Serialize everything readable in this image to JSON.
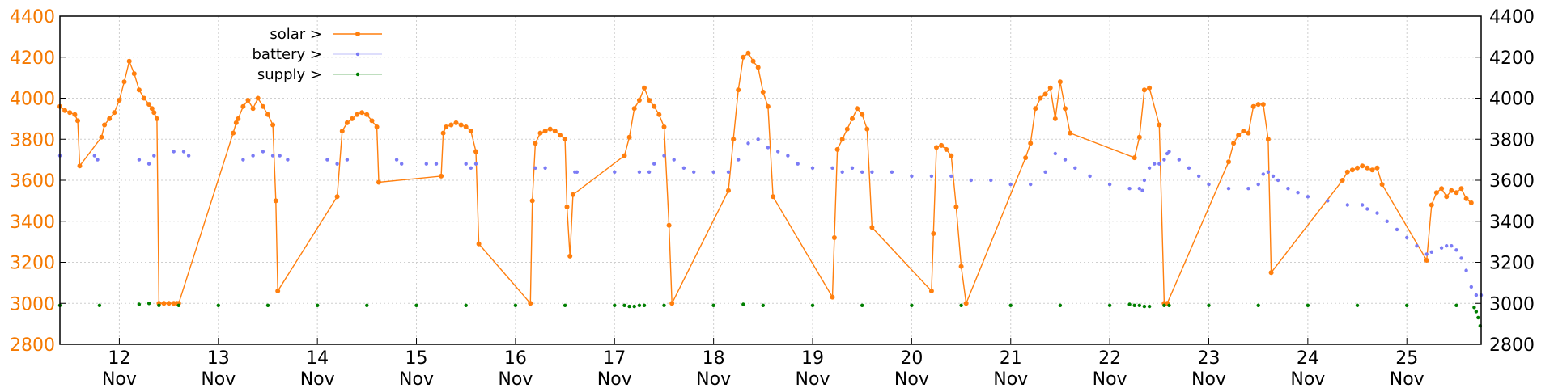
{
  "chart_data": {
    "type": "line",
    "title": "",
    "xlabel": "",
    "ylabel": "",
    "x_unit": "day (Nov)",
    "xlim": [
      11.4,
      25.75
    ],
    "ylim": [
      2800,
      4400
    ],
    "y_ticks": [
      "2800",
      "3000",
      "3200",
      "3400",
      "3600",
      "3800",
      "4000",
      "4200",
      "4400"
    ],
    "x_ticks": [
      {
        "day": 12,
        "label": "12",
        "month": "Nov"
      },
      {
        "day": 13,
        "label": "13",
        "month": "Nov"
      },
      {
        "day": 14,
        "label": "14",
        "month": "Nov"
      },
      {
        "day": 15,
        "label": "15",
        "month": "Nov"
      },
      {
        "day": 16,
        "label": "16",
        "month": "Nov"
      },
      {
        "day": 17,
        "label": "17",
        "month": "Nov"
      },
      {
        "day": 18,
        "label": "18",
        "month": "Nov"
      },
      {
        "day": 19,
        "label": "19",
        "month": "Nov"
      },
      {
        "day": 20,
        "label": "20",
        "month": "Nov"
      },
      {
        "day": 21,
        "label": "21",
        "month": "Nov"
      },
      {
        "day": 22,
        "label": "22",
        "month": "Nov"
      },
      {
        "day": 23,
        "label": "23",
        "month": "Nov"
      },
      {
        "day": 24,
        "label": "24",
        "month": "Nov"
      },
      {
        "day": 25,
        "label": "25",
        "month": "Nov"
      }
    ],
    "grid": true,
    "legend_position": "top-left",
    "series": [
      {
        "name": "solar >",
        "color": "#ff7f0e",
        "style": "line+points",
        "x": [
          11.4,
          11.45,
          11.5,
          11.55,
          11.58,
          11.6,
          11.82,
          11.85,
          11.9,
          11.95,
          12.0,
          12.05,
          12.1,
          12.15,
          12.2,
          12.25,
          12.3,
          12.33,
          12.35,
          12.38,
          12.4,
          12.45,
          12.5,
          12.55,
          12.58,
          12.6,
          13.15,
          13.18,
          13.2,
          13.25,
          13.3,
          13.35,
          13.4,
          13.45,
          13.5,
          13.55,
          13.58,
          13.6,
          14.2,
          14.25,
          14.3,
          14.35,
          14.4,
          14.45,
          14.5,
          14.55,
          14.6,
          14.62,
          15.25,
          15.27,
          15.3,
          15.35,
          15.4,
          15.45,
          15.5,
          15.55,
          15.6,
          15.63,
          16.15,
          16.17,
          16.2,
          16.25,
          16.3,
          16.35,
          16.4,
          16.45,
          16.5,
          16.52,
          16.55,
          16.58,
          17.1,
          17.15,
          17.2,
          17.25,
          17.3,
          17.35,
          17.4,
          17.45,
          17.5,
          17.55,
          17.58,
          18.15,
          18.2,
          18.25,
          18.3,
          18.35,
          18.4,
          18.45,
          18.5,
          18.55,
          18.6,
          19.2,
          19.22,
          19.25,
          19.3,
          19.35,
          19.4,
          19.45,
          19.5,
          19.55,
          19.6,
          20.2,
          20.22,
          20.25,
          20.3,
          20.35,
          20.4,
          20.45,
          20.5,
          20.55,
          21.15,
          21.2,
          21.25,
          21.3,
          21.35,
          21.4,
          21.45,
          21.5,
          21.55,
          21.6,
          22.25,
          22.3,
          22.35,
          22.4,
          22.5,
          22.55,
          22.58,
          23.2,
          23.25,
          23.3,
          23.35,
          23.4,
          23.45,
          23.5,
          23.55,
          23.6,
          23.63,
          24.35,
          24.4,
          24.45,
          24.5,
          24.55,
          24.6,
          24.65,
          24.7,
          24.75,
          25.2,
          25.25,
          25.3,
          25.35,
          25.4,
          25.45,
          25.5,
          25.55,
          25.6,
          25.65
        ],
        "y": [
          3960,
          3940,
          3930,
          3920,
          3890,
          3670,
          3810,
          3870,
          3900,
          3930,
          3990,
          4080,
          4180,
          4120,
          4040,
          4000,
          3970,
          3950,
          3930,
          3900,
          3000,
          3000,
          3000,
          3000,
          3000,
          3000,
          3830,
          3880,
          3900,
          3960,
          3990,
          3950,
          4000,
          3960,
          3920,
          3870,
          3500,
          3060,
          3520,
          3840,
          3880,
          3900,
          3920,
          3930,
          3920,
          3890,
          3860,
          3590,
          3620,
          3830,
          3860,
          3870,
          3880,
          3870,
          3860,
          3840,
          3740,
          3290,
          3000,
          3500,
          3780,
          3830,
          3840,
          3850,
          3840,
          3820,
          3800,
          3470,
          3230,
          3530,
          3720,
          3810,
          3950,
          3990,
          4050,
          3990,
          3960,
          3920,
          3860,
          3380,
          3000,
          3550,
          3800,
          4040,
          4200,
          4220,
          4180,
          4150,
          4030,
          3960,
          3520,
          3030,
          3320,
          3750,
          3800,
          3850,
          3900,
          3950,
          3920,
          3850,
          3370,
          3060,
          3340,
          3760,
          3770,
          3750,
          3720,
          3470,
          3180,
          3000,
          3710,
          3780,
          3950,
          4000,
          4020,
          4050,
          3900,
          4080,
          3950,
          3830,
          3710,
          3810,
          4040,
          4050,
          3870,
          3000,
          3000,
          3690,
          3780,
          3820,
          3840,
          3830,
          3960,
          3970,
          3970,
          3800,
          3150,
          3600,
          3640,
          3650,
          3660,
          3670,
          3660,
          3650,
          3660,
          3580,
          3210,
          3480,
          3540,
          3560,
          3520,
          3550,
          3540,
          3560,
          3510,
          3490
        ]
      },
      {
        "name": "battery >",
        "color": "#7b7bf5",
        "style": "points",
        "x": [
          11.4,
          11.75,
          11.78,
          12.2,
          12.3,
          12.35,
          12.55,
          12.65,
          12.7,
          13.25,
          13.35,
          13.45,
          13.55,
          13.62,
          13.7,
          14.1,
          14.2,
          14.3,
          14.8,
          14.85,
          15.1,
          15.2,
          15.5,
          15.55,
          15.6,
          16.2,
          16.3,
          16.6,
          16.62,
          17.0,
          17.25,
          17.35,
          17.4,
          17.5,
          17.6,
          17.7,
          17.8,
          18.0,
          18.15,
          18.25,
          18.35,
          18.45,
          18.55,
          18.65,
          18.75,
          18.85,
          19.0,
          19.2,
          19.3,
          19.4,
          19.5,
          19.6,
          19.8,
          20.0,
          20.2,
          20.4,
          20.6,
          20.8,
          21.0,
          21.2,
          21.35,
          21.45,
          21.55,
          21.65,
          21.8,
          22.0,
          22.2,
          22.3,
          22.33,
          22.35,
          22.4,
          22.45,
          22.5,
          22.55,
          22.58,
          22.6,
          22.7,
          22.8,
          22.9,
          23.0,
          23.2,
          23.4,
          23.5,
          23.55,
          23.6,
          23.65,
          23.7,
          23.8,
          23.9,
          24.0,
          24.2,
          24.4,
          24.55,
          24.6,
          24.7,
          24.8,
          24.9,
          25.0,
          25.1,
          25.2,
          25.25,
          25.35,
          25.4,
          25.45,
          25.5,
          25.55,
          25.6,
          25.65,
          25.7,
          25.75
        ],
        "y": [
          3720,
          3720,
          3700,
          3700,
          3680,
          3720,
          3740,
          3740,
          3720,
          3700,
          3720,
          3740,
          3720,
          3720,
          3700,
          3700,
          3680,
          3700,
          3700,
          3680,
          3680,
          3680,
          3680,
          3660,
          3680,
          3660,
          3660,
          3640,
          3640,
          3640,
          3640,
          3640,
          3680,
          3720,
          3700,
          3660,
          3640,
          3640,
          3640,
          3700,
          3780,
          3800,
          3760,
          3740,
          3720,
          3680,
          3660,
          3660,
          3640,
          3660,
          3640,
          3640,
          3640,
          3620,
          3620,
          3620,
          3600,
          3600,
          3580,
          3580,
          3640,
          3730,
          3700,
          3660,
          3620,
          3580,
          3560,
          3560,
          3550,
          3600,
          3660,
          3680,
          3680,
          3700,
          3730,
          3740,
          3700,
          3660,
          3620,
          3580,
          3560,
          3560,
          3580,
          3630,
          3640,
          3620,
          3600,
          3560,
          3540,
          3520,
          3500,
          3480,
          3480,
          3460,
          3440,
          3400,
          3360,
          3320,
          3280,
          3240,
          3250,
          3270,
          3280,
          3280,
          3260,
          3220,
          3160,
          3080,
          3040,
          3040
        ]
      },
      {
        "name": "supply >",
        "color": "#007f00",
        "style": "points",
        "x": [
          11.4,
          11.8,
          12.2,
          12.3,
          12.4,
          12.6,
          13.0,
          13.5,
          14.0,
          14.5,
          15.0,
          15.5,
          16.0,
          16.5,
          17.0,
          17.1,
          17.15,
          17.2,
          17.25,
          17.3,
          17.5,
          18.0,
          18.3,
          18.5,
          19.0,
          19.5,
          20.0,
          20.5,
          21.0,
          21.5,
          22.0,
          22.2,
          22.25,
          22.3,
          22.35,
          22.4,
          22.55,
          22.6,
          23.0,
          23.5,
          24.0,
          24.5,
          25.0,
          25.5,
          25.68,
          25.7,
          25.72,
          25.74
        ],
        "y": [
          2990,
          2990,
          2995,
          3000,
          2990,
          2990,
          2990,
          2990,
          2990,
          2990,
          2990,
          2990,
          2990,
          2990,
          2990,
          2990,
          2985,
          2985,
          2990,
          2990,
          2990,
          2990,
          2995,
          2990,
          2990,
          2990,
          2990,
          2990,
          2990,
          2990,
          2990,
          2995,
          2990,
          2990,
          2985,
          2985,
          2990,
          2990,
          2990,
          2990,
          2990,
          2990,
          2990,
          2990,
          2980,
          2960,
          2930,
          2890
        ]
      }
    ]
  }
}
